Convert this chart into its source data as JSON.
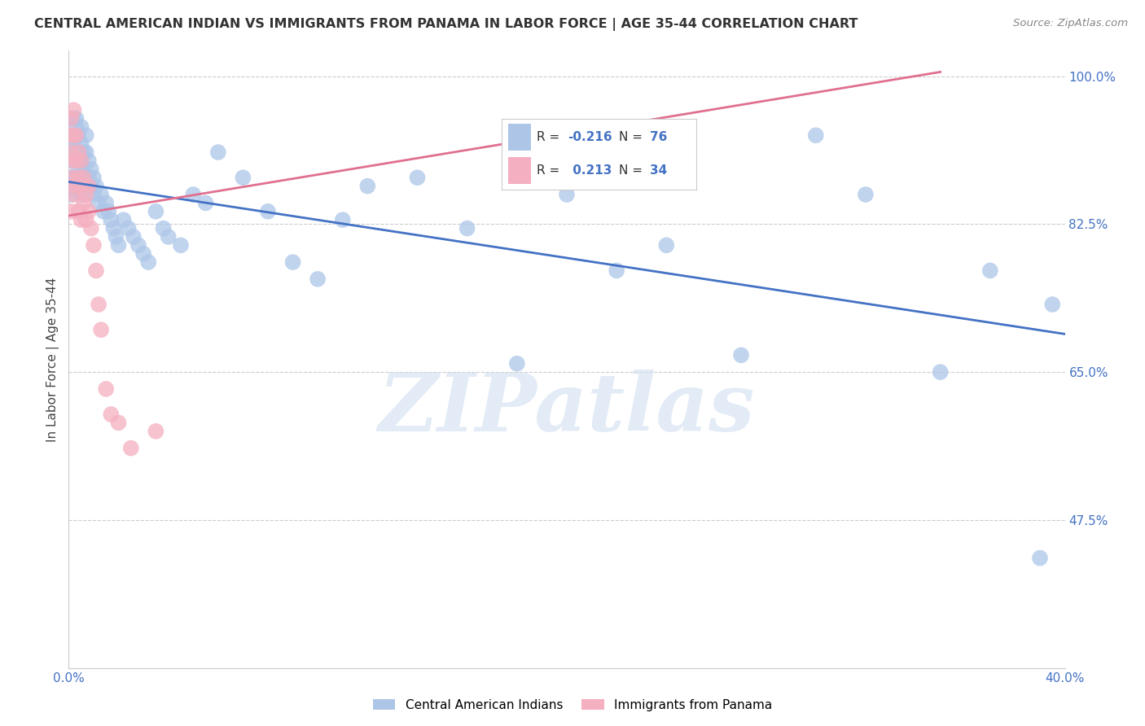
{
  "title": "CENTRAL AMERICAN INDIAN VS IMMIGRANTS FROM PANAMA IN LABOR FORCE | AGE 35-44 CORRELATION CHART",
  "source": "Source: ZipAtlas.com",
  "ylabel": "In Labor Force | Age 35-44",
  "x_min": 0.0,
  "x_max": 0.4,
  "y_min": 0.3,
  "y_max": 1.03,
  "blue_r": -0.216,
  "blue_n": 76,
  "pink_r": 0.213,
  "pink_n": 34,
  "blue_color": "#adc6e8",
  "pink_color": "#f4afc0",
  "blue_line_color": "#4472c4",
  "pink_line_color": "#e07090",
  "legend_label_blue": "Central American Indians",
  "legend_label_pink": "Immigrants from Panama",
  "watermark": "ZIPatlas",
  "background_color": "#ffffff",
  "grid_color": "#cccccc",
  "blue_points_x": [
    0.001,
    0.001,
    0.001,
    0.001,
    0.001,
    0.002,
    0.002,
    0.002,
    0.002,
    0.002,
    0.003,
    0.003,
    0.003,
    0.003,
    0.004,
    0.004,
    0.004,
    0.004,
    0.005,
    0.005,
    0.005,
    0.005,
    0.006,
    0.006,
    0.006,
    0.007,
    0.007,
    0.007,
    0.008,
    0.008,
    0.009,
    0.009,
    0.01,
    0.01,
    0.011,
    0.012,
    0.013,
    0.014,
    0.015,
    0.016,
    0.017,
    0.018,
    0.019,
    0.02,
    0.022,
    0.024,
    0.026,
    0.028,
    0.03,
    0.032,
    0.035,
    0.038,
    0.04,
    0.045,
    0.05,
    0.055,
    0.06,
    0.07,
    0.08,
    0.09,
    0.1,
    0.11,
    0.12,
    0.14,
    0.16,
    0.18,
    0.2,
    0.22,
    0.24,
    0.27,
    0.3,
    0.32,
    0.35,
    0.37,
    0.39,
    0.395
  ],
  "blue_points_y": [
    0.92,
    0.9,
    0.88,
    0.87,
    0.86,
    0.95,
    0.93,
    0.92,
    0.88,
    0.87,
    0.95,
    0.94,
    0.91,
    0.88,
    0.93,
    0.91,
    0.89,
    0.87,
    0.94,
    0.92,
    0.9,
    0.86,
    0.91,
    0.89,
    0.87,
    0.93,
    0.91,
    0.88,
    0.9,
    0.88,
    0.89,
    0.87,
    0.88,
    0.86,
    0.87,
    0.85,
    0.86,
    0.84,
    0.85,
    0.84,
    0.83,
    0.82,
    0.81,
    0.8,
    0.83,
    0.82,
    0.81,
    0.8,
    0.79,
    0.78,
    0.84,
    0.82,
    0.81,
    0.8,
    0.86,
    0.85,
    0.91,
    0.88,
    0.84,
    0.78,
    0.76,
    0.83,
    0.87,
    0.88,
    0.82,
    0.66,
    0.86,
    0.77,
    0.8,
    0.67,
    0.93,
    0.86,
    0.65,
    0.77,
    0.43,
    0.73
  ],
  "pink_points_x": [
    0.001,
    0.001,
    0.001,
    0.001,
    0.001,
    0.002,
    0.002,
    0.002,
    0.002,
    0.003,
    0.003,
    0.003,
    0.004,
    0.004,
    0.004,
    0.005,
    0.005,
    0.005,
    0.006,
    0.006,
    0.007,
    0.007,
    0.008,
    0.008,
    0.009,
    0.01,
    0.011,
    0.012,
    0.013,
    0.015,
    0.017,
    0.02,
    0.025,
    0.035
  ],
  "pink_points_y": [
    0.95,
    0.93,
    0.91,
    0.88,
    0.84,
    0.96,
    0.93,
    0.9,
    0.86,
    0.93,
    0.9,
    0.87,
    0.91,
    0.88,
    0.84,
    0.9,
    0.87,
    0.83,
    0.88,
    0.85,
    0.86,
    0.83,
    0.87,
    0.84,
    0.82,
    0.8,
    0.77,
    0.73,
    0.7,
    0.63,
    0.6,
    0.59,
    0.56,
    0.58
  ],
  "blue_line_x0": 0.0,
  "blue_line_x1": 0.4,
  "blue_line_y0": 0.875,
  "blue_line_y1": 0.695,
  "pink_line_x0": 0.0,
  "pink_line_x1": 0.35,
  "pink_line_y0": 0.835,
  "pink_line_y1": 1.005
}
